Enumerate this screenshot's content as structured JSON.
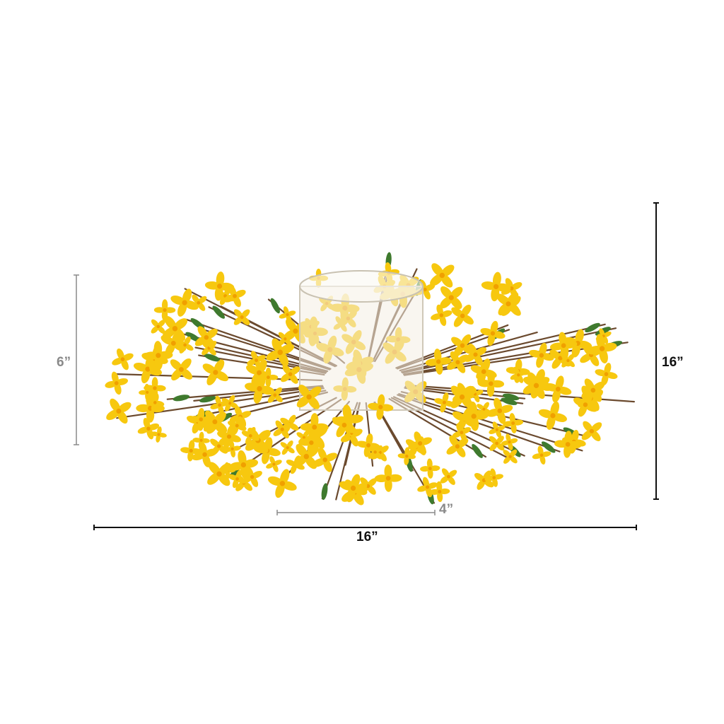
{
  "dimensions": {
    "height_label": "6”",
    "overall_height_label": "16”",
    "inner_width_label": "4”",
    "overall_width_label": "16”"
  },
  "colors": {
    "background": "#ffffff",
    "flower": "#f7c80f",
    "flower_center": "#f0a000",
    "leaf": "#3f7a2e",
    "branch": "#6b4a2e",
    "dimension_gray": "#8a8a8a",
    "dimension_black": "#111111"
  }
}
